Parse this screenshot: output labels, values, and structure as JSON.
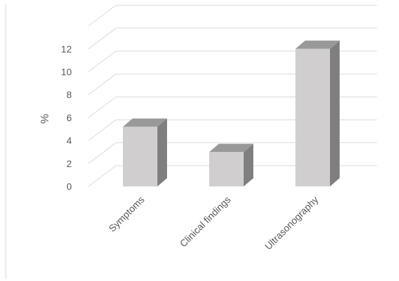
{
  "chart_data": {
    "type": "bar",
    "style": "3d-column",
    "categories": [
      "Symptoms",
      "Clinical findings",
      "Ultrasonography"
    ],
    "values": [
      5.2,
      3.0,
      12.0
    ],
    "ylabel": "%",
    "xlabel": "",
    "title": "",
    "ylim": [
      0,
      14
    ],
    "yticks": [
      0,
      2,
      4,
      6,
      8,
      10,
      12
    ],
    "grid": true,
    "legend": "none",
    "colors": {
      "bar_front": "#d0cece",
      "bar_side": "#7f7f7f",
      "bar_top": "#999999",
      "gridline": "#d9d9d9",
      "text": "#595959"
    }
  }
}
